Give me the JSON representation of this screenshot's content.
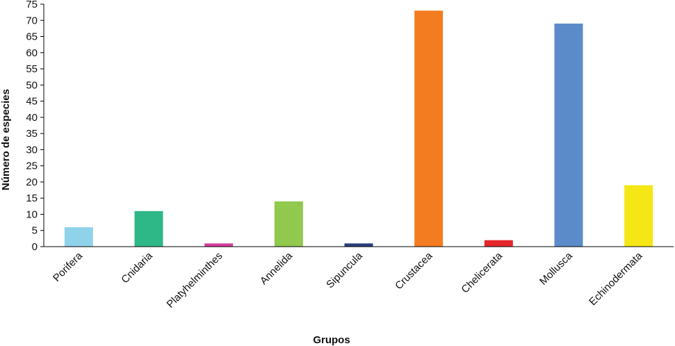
{
  "chart_data": {
    "type": "bar",
    "title": "",
    "xlabel": "Grupos",
    "ylabel": "Número de especies",
    "ylim": [
      0,
      75
    ],
    "yticks": [
      0,
      5,
      10,
      15,
      20,
      25,
      30,
      35,
      40,
      45,
      50,
      55,
      60,
      65,
      70,
      75
    ],
    "grid": false,
    "legend": "none",
    "categories": [
      "Porifera",
      "Cnidaria",
      "Platyhelminthes",
      "Annelida",
      "Sipuncula",
      "Crustacea",
      "Chelicerata",
      "Mollusca",
      "Echinodermata"
    ],
    "values": [
      6,
      11,
      1,
      14,
      1,
      73,
      2,
      69,
      19
    ],
    "colors": [
      "#8fd3ea",
      "#2fb887",
      "#d63d9c",
      "#91c84e",
      "#2a3f7e",
      "#f47c20",
      "#e5262a",
      "#5b8cc9",
      "#f5e616"
    ]
  }
}
